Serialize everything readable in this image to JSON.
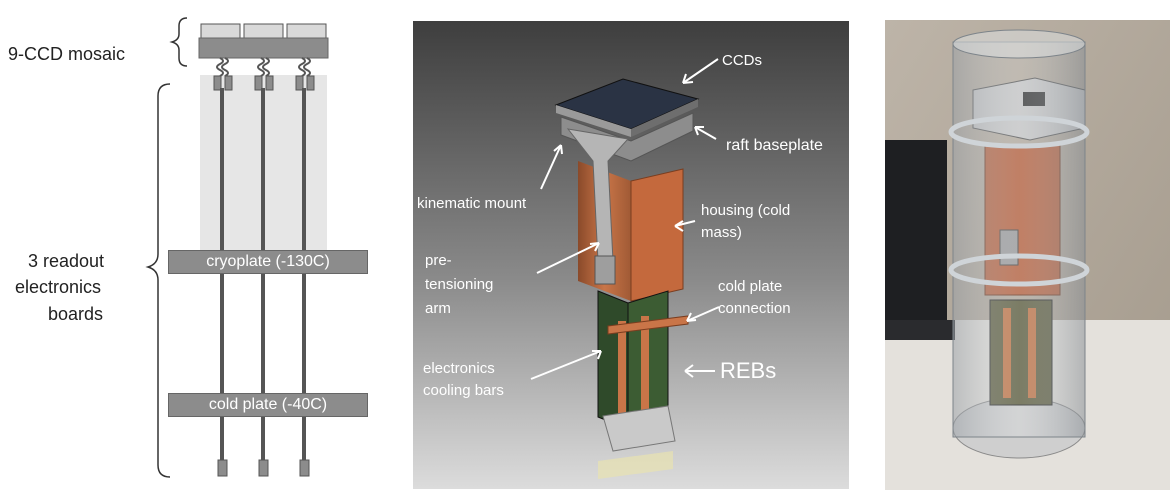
{
  "schematic": {
    "mosaic_label": "9-CCD mosaic",
    "boards_label": [
      "3 readout",
      "electronics",
      "boards"
    ],
    "cryoplate_label": "cryoplate (-130C)",
    "coldplate_label": "cold plate (-40C)"
  },
  "render": {
    "ccds": "CCDs",
    "raft_baseplate": "raft baseplate",
    "kinematic_mount": "kinematic mount",
    "housing": [
      "housing (cold",
      "mass)"
    ],
    "pretensioning_arm": [
      "pre-",
      "tensioning",
      "arm"
    ],
    "cold_plate_connection": [
      "cold plate",
      "connection"
    ],
    "electronics_cooling_bars": [
      "electronics",
      "cooling bars"
    ],
    "rebs": "REBs"
  },
  "colors": {
    "plate_gray": "#8c8c8c",
    "housing_copper": "#c0683e",
    "render_bg_top": "#3e3e3e",
    "render_bg_bottom": "#d8d8d8"
  }
}
